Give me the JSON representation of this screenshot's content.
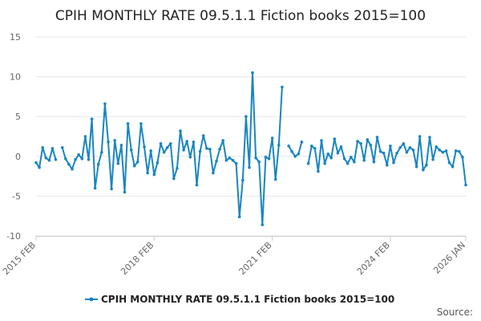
{
  "chart_data": {
    "type": "line",
    "title": "CPIH MONTHLY RATE 09.5.1.1 Fiction books 2015=100",
    "xlabel": "",
    "ylabel": "",
    "ylim": [
      -10,
      15
    ],
    "y_ticks": [
      15,
      10,
      5,
      0,
      -5,
      -10
    ],
    "x_tick_labels": [
      "2015 FEB",
      "2018 FEB",
      "2021 FEB",
      "2024 FEB",
      "2026 JAN"
    ],
    "grid": true,
    "legend_position": "bottom",
    "colors": {
      "series": "#1a85c0",
      "grid": "#e6e6e6",
      "axis": "#cccccc"
    },
    "series": [
      {
        "name": "CPIH MONTHLY RATE 09.5.1.1 Fiction books 2015=100",
        "x": [
          "2015-02",
          "2015-03",
          "2015-04",
          "2015-05",
          "2015-06",
          "2015-07",
          "2015-08",
          "2015-09",
          "2015-10",
          "2015-11",
          "2015-12",
          "2016-01",
          "2016-02",
          "2016-03",
          "2016-04",
          "2016-05",
          "2016-06",
          "2016-07",
          "2016-08",
          "2016-09",
          "2016-10",
          "2016-11",
          "2016-12",
          "2017-01",
          "2017-02",
          "2017-03",
          "2017-04",
          "2017-05",
          "2017-06",
          "2017-07",
          "2017-08",
          "2017-09",
          "2017-10",
          "2017-11",
          "2017-12",
          "2018-01",
          "2018-02",
          "2018-03",
          "2018-04",
          "2018-05",
          "2018-06",
          "2018-07",
          "2018-08",
          "2018-09",
          "2018-10",
          "2018-11",
          "2018-12",
          "2019-01",
          "2019-02",
          "2019-03",
          "2019-04",
          "2019-05",
          "2019-06",
          "2019-07",
          "2019-08",
          "2019-09",
          "2019-10",
          "2019-11",
          "2019-12",
          "2020-01",
          "2020-02",
          "2020-03",
          "2020-04",
          "2020-05",
          "2020-06",
          "2020-07",
          "2020-08",
          "2020-09",
          "2020-10",
          "2020-11",
          "2020-12",
          "2021-01",
          "2021-02",
          "2021-03",
          "2021-04",
          "2021-05",
          "2021-06",
          "2021-07",
          "2021-08",
          "2021-09",
          "2021-10",
          "2021-11",
          "2021-12",
          "2022-01",
          "2022-02",
          "2022-03",
          "2022-04",
          "2022-05",
          "2022-06",
          "2022-07",
          "2022-08",
          "2022-09",
          "2022-10",
          "2022-11",
          "2022-12",
          "2023-01",
          "2023-02",
          "2023-03",
          "2023-04",
          "2023-05",
          "2023-06",
          "2023-07",
          "2023-08",
          "2023-09",
          "2023-10",
          "2023-11",
          "2023-12",
          "2024-01",
          "2024-02",
          "2024-03",
          "2024-04",
          "2024-05",
          "2024-06",
          "2024-07",
          "2024-08",
          "2024-09",
          "2024-10",
          "2024-11",
          "2024-12",
          "2025-01",
          "2025-02",
          "2025-03",
          "2025-04",
          "2025-05",
          "2025-06",
          "2025-07",
          "2025-08",
          "2025-09",
          "2025-10",
          "2025-11",
          "2025-12",
          "2026-01"
        ],
        "values": [
          -0.8,
          -1.4,
          1.1,
          -0.2,
          -0.5,
          1.0,
          -0.4,
          null,
          1.1,
          -0.3,
          -1.0,
          -1.6,
          -0.4,
          0.2,
          -0.3,
          2.5,
          -0.4,
          4.7,
          -4.0,
          -1.0,
          0.5,
          6.6,
          1.8,
          -4.1,
          2.0,
          -0.9,
          1.4,
          -4.5,
          4.1,
          0.8,
          -1.2,
          -0.7,
          4.1,
          1.2,
          -2.1,
          0.7,
          -2.3,
          -0.8,
          1.6,
          0.5,
          1.1,
          1.6,
          -2.8,
          -1.5,
          3.2,
          0.8,
          1.9,
          -0.1,
          1.8,
          -3.6,
          0.6,
          2.6,
          1.0,
          0.9,
          -2.1,
          -0.6,
          0.9,
          2.0,
          -0.5,
          -0.2,
          -0.5,
          -0.9,
          -7.6,
          -3.0,
          5.0,
          -1.4,
          10.5,
          -0.2,
          -0.7,
          -8.6,
          -0.1,
          -0.3,
          2.3,
          -2.9,
          1.4,
          8.7,
          null,
          1.3,
          0.6,
          0.0,
          0.3,
          1.8,
          null,
          -0.9,
          1.3,
          1.0,
          -1.9,
          2.0,
          -0.9,
          0.3,
          -0.2,
          2.2,
          0.4,
          1.2,
          -0.3,
          -0.9,
          -0.1,
          -0.7,
          1.9,
          1.6,
          -0.5,
          2.1,
          1.4,
          -0.7,
          2.4,
          0.6,
          0.4,
          -1.1,
          1.3,
          -0.8,
          0.4,
          1.1,
          1.6,
          0.5,
          1.1,
          0.8,
          -1.3,
          2.5,
          -1.7,
          -1.1,
          2.4,
          -0.4,
          1.2,
          0.8,
          0.5,
          0.7,
          -0.8,
          -1.3,
          0.7,
          0.6,
          -0.1,
          -3.6
        ]
      }
    ]
  },
  "legend": {
    "label": "CPIH MONTHLY RATE 09.5.1.1 Fiction books 2015=100"
  },
  "footer": {
    "source": "Source:"
  }
}
